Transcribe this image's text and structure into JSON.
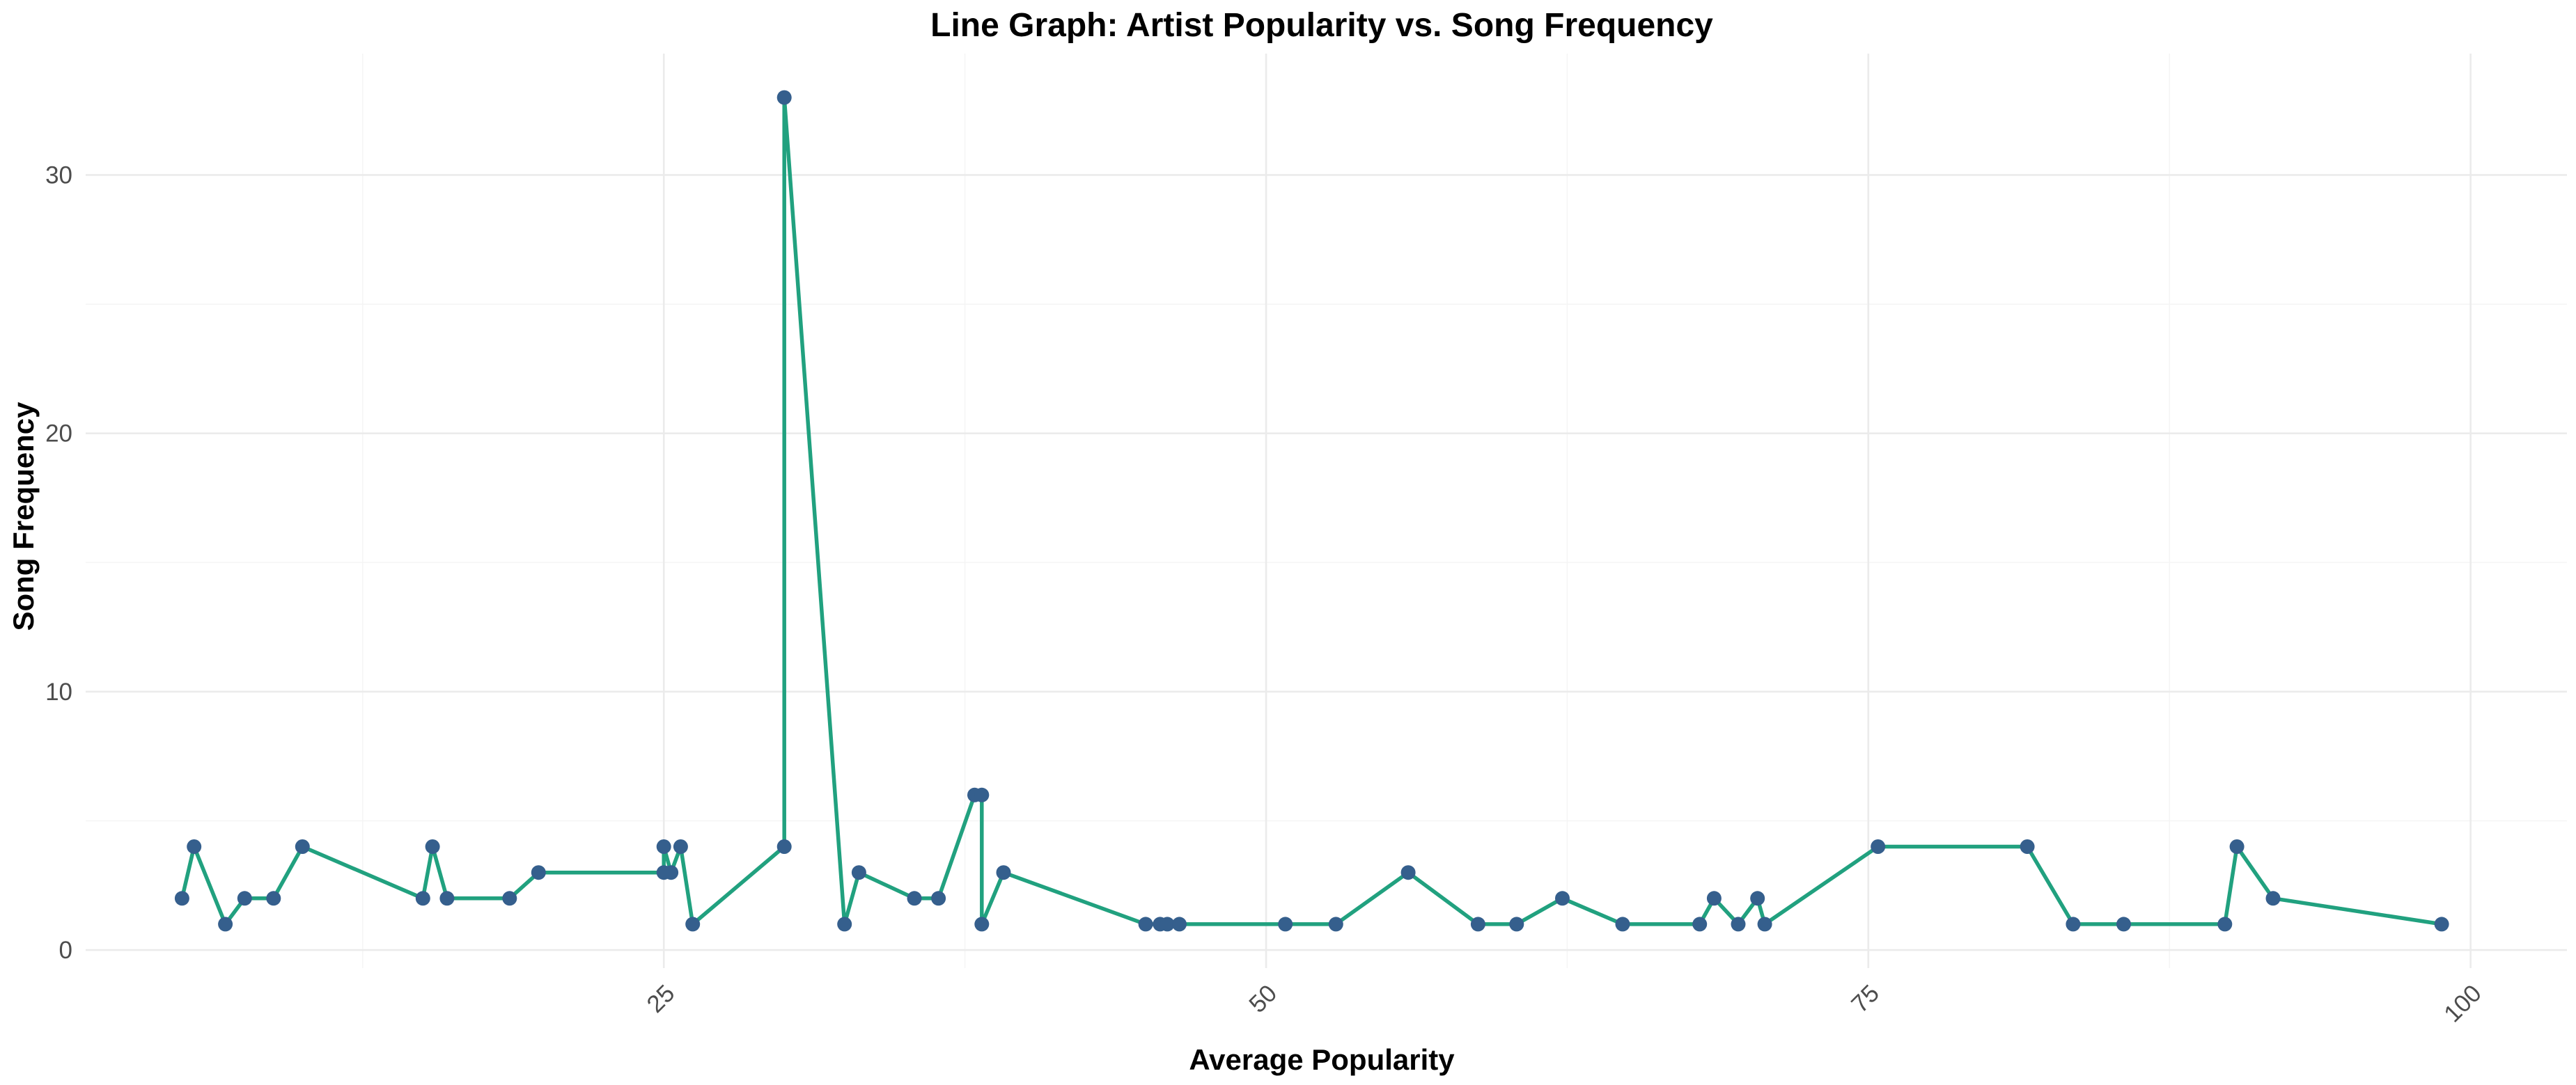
{
  "chart_data": {
    "type": "line",
    "title": "Line Graph: Artist Popularity vs. Song Frequency",
    "xlabel": "Average Popularity",
    "ylabel": "Song Frequency",
    "xlim": [
      1,
      104
    ],
    "ylim": [
      -0.7,
      34.7
    ],
    "x_ticks": [
      25,
      50,
      75,
      100
    ],
    "x_tick_labels": [
      "25",
      "50",
      "75",
      "100"
    ],
    "y_ticks": [
      0,
      10,
      20,
      30
    ],
    "y_tick_labels": [
      "0",
      "10",
      "20",
      "30"
    ],
    "grid": true,
    "legend": "none",
    "line_color": "#21a17f",
    "point_color": "#355f8d",
    "series": [
      {
        "x": [
          5.0,
          5.5,
          6.8,
          7.6,
          8.8,
          10.0,
          15.0,
          15.4,
          16.0,
          18.6,
          19.8,
          25.0,
          25.0,
          25.3,
          25.7,
          26.2,
          30.0,
          30.0,
          32.5,
          33.1,
          35.4,
          36.4,
          37.9,
          38.2,
          38.2,
          39.1,
          45.0,
          45.6,
          45.9,
          46.4,
          50.8,
          52.9,
          55.9,
          58.8,
          60.4,
          62.3,
          64.8,
          68.0,
          68.6,
          69.6,
          70.4,
          70.7,
          75.4,
          81.6,
          83.5,
          85.6,
          89.8,
          90.3,
          91.8,
          98.8
        ],
        "y": [
          2,
          4,
          1,
          2,
          2,
          4,
          2,
          4,
          2,
          2,
          3,
          3,
          4,
          3,
          4,
          1,
          4,
          33,
          1,
          3,
          2,
          2,
          6,
          6,
          1,
          3,
          1,
          1,
          1,
          1,
          1,
          1,
          3,
          1,
          1,
          2,
          1,
          1,
          2,
          1,
          2,
          1,
          4,
          4,
          1,
          1,
          1,
          4,
          2,
          1
        ]
      }
    ]
  }
}
